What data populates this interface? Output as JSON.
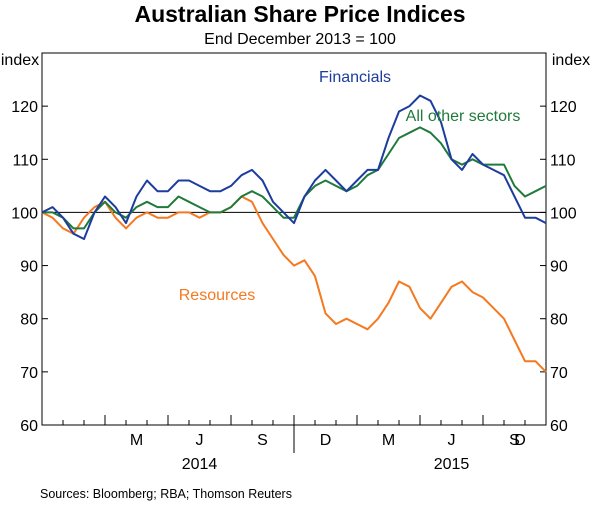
{
  "chart_data": {
    "type": "line",
    "title": "Australian Share Price Indices",
    "subtitle": "End December 2013 = 100",
    "source": "Sources:  Bloomberg; RBA; Thomson Reuters",
    "y_unit_left": "index",
    "y_unit_right": "index",
    "ylim": [
      60,
      130
    ],
    "yticks": [
      60,
      70,
      80,
      90,
      100,
      110,
      120
    ],
    "xlim": [
      0,
      24
    ],
    "month_ticks": [
      {
        "label": "M",
        "x": 4.5
      },
      {
        "label": "J",
        "x": 7.5
      },
      {
        "label": "S",
        "x": 10.5
      },
      {
        "label": "D",
        "x": 13.5
      },
      {
        "label": "M",
        "x": 16.5
      },
      {
        "label": "J",
        "x": 19.5
      },
      {
        "label": "S",
        "x": 22.5
      },
      {
        "label": "D",
        "x": 25.5
      }
    ],
    "year_labels": [
      {
        "label": "2014",
        "x": 7.5
      },
      {
        "label": "2015",
        "x": 19.5
      }
    ],
    "reference_line": 100,
    "series": [
      {
        "name": "Financials",
        "color": "#1d3c9e",
        "x": [
          0,
          0.5,
          1,
          1.5,
          2,
          2.5,
          3,
          3.5,
          4,
          4.5,
          5,
          5.5,
          6,
          6.5,
          7,
          7.5,
          8,
          8.5,
          9,
          9.5,
          10,
          10.5,
          11,
          11.5,
          12,
          12.5,
          13,
          13.5,
          14,
          14.5,
          15,
          15.5,
          16,
          16.5,
          17,
          17.5,
          18,
          18.5,
          19,
          19.5,
          20,
          20.5,
          21,
          21.5,
          22,
          22.5,
          23,
          23.5,
          24
        ],
        "values": [
          100,
          101,
          99,
          96,
          95,
          100,
          103,
          101,
          98,
          103,
          106,
          104,
          104,
          106,
          106,
          105,
          104,
          104,
          105,
          107,
          108,
          106,
          102,
          100,
          98,
          103,
          106,
          108,
          106,
          104,
          106,
          108,
          108,
          114,
          119,
          120,
          122,
          121,
          117,
          110,
          108,
          111,
          109,
          108,
          107,
          103,
          99,
          99,
          98
        ]
      },
      {
        "name": "All other sectors",
        "color": "#1f7a3c",
        "x": [
          0,
          0.5,
          1,
          1.5,
          2,
          2.5,
          3,
          3.5,
          4,
          4.5,
          5,
          5.5,
          6,
          6.5,
          7,
          7.5,
          8,
          8.5,
          9,
          9.5,
          10,
          10.5,
          11,
          11.5,
          12,
          12.5,
          13,
          13.5,
          14,
          14.5,
          15,
          15.5,
          16,
          16.5,
          17,
          17.5,
          18,
          18.5,
          19,
          19.5,
          20,
          20.5,
          21,
          21.5,
          22,
          22.5,
          23,
          23.5,
          24
        ],
        "values": [
          100,
          100,
          99,
          97,
          97,
          100,
          102,
          100,
          99,
          101,
          102,
          101,
          101,
          103,
          102,
          101,
          100,
          100,
          101,
          103,
          104,
          103,
          101,
          99,
          99,
          103,
          105,
          106,
          105,
          104,
          105,
          107,
          108,
          111,
          114,
          115,
          116,
          115,
          113,
          110,
          109,
          110,
          109,
          109,
          109,
          105,
          103,
          104,
          105
        ]
      },
      {
        "name": "Resources",
        "color": "#f47920",
        "x": [
          0,
          0.5,
          1,
          1.5,
          2,
          2.5,
          3,
          3.5,
          4,
          4.5,
          5,
          5.5,
          6,
          6.5,
          7,
          7.5,
          8,
          8.5,
          9,
          9.5,
          10,
          10.5,
          11,
          11.5,
          12,
          12.5,
          13,
          13.5,
          14,
          14.5,
          15,
          15.5,
          16,
          16.5,
          17,
          17.5,
          18,
          18.5,
          19,
          19.5,
          20,
          20.5,
          21,
          21.5,
          22,
          22.5,
          23,
          23.5,
          24
        ],
        "values": [
          100,
          99,
          97,
          96,
          99,
          101,
          102,
          99,
          97,
          99,
          100,
          99,
          99,
          100,
          100,
          99,
          100,
          100,
          101,
          103,
          102,
          98,
          95,
          92,
          90,
          91,
          88,
          81,
          79,
          80,
          79,
          78,
          80,
          83,
          87,
          86,
          82,
          80,
          83,
          86,
          87,
          85,
          84,
          82,
          80,
          76,
          72,
          72,
          70
        ]
      }
    ]
  }
}
